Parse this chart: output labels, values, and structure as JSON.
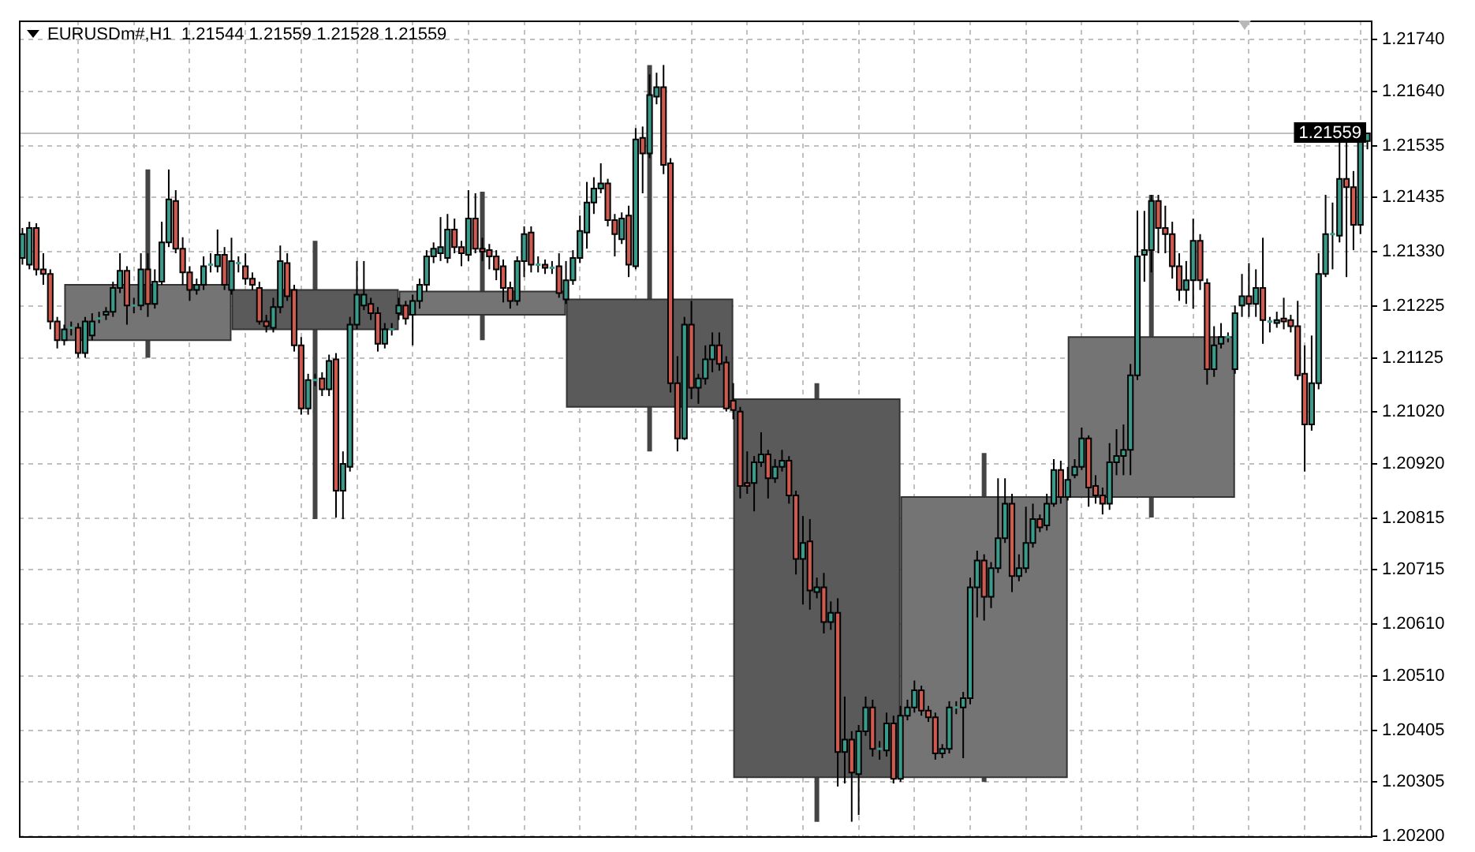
{
  "chart_data": {
    "type": "candlestick",
    "title": "EURUSDm#,H1  1.21544 1.21559 1.21528 1.21559",
    "categories": [
      null,
      null,
      null,
      null,
      null,
      null,
      null,
      null,
      null,
      null,
      null,
      null,
      null,
      null,
      null,
      null,
      null,
      null,
      null,
      null,
      null,
      null,
      null,
      null,
      null,
      null,
      null,
      null,
      null,
      null,
      null,
      null,
      null,
      null,
      null,
      null,
      null,
      null,
      null,
      null,
      null,
      null,
      null,
      null,
      null,
      null,
      null,
      null,
      null,
      null,
      null,
      null,
      null,
      null,
      null,
      null,
      null,
      null,
      null,
      null,
      null,
      null,
      null,
      null,
      null,
      null,
      null,
      null,
      null,
      null,
      null,
      null,
      null,
      null,
      null,
      null,
      null,
      null,
      null,
      null,
      null,
      null,
      null,
      null,
      null,
      null,
      null,
      null,
      null,
      null,
      null,
      null,
      null,
      null,
      null,
      null,
      null,
      null,
      null,
      null,
      null,
      null,
      null,
      null,
      null,
      null,
      null,
      null,
      null,
      null,
      null,
      null,
      null,
      null,
      null,
      null,
      null,
      null,
      null,
      null,
      null,
      null,
      null,
      null,
      null,
      null,
      null,
      null,
      null,
      null,
      null,
      null,
      null,
      null,
      null,
      null,
      null,
      null,
      null,
      null,
      null,
      null,
      null,
      null,
      null,
      null,
      null,
      null,
      null,
      null,
      null,
      null,
      null,
      null,
      null,
      null,
      null,
      null,
      null,
      null,
      null,
      null,
      null,
      null,
      null,
      null,
      null,
      null,
      null,
      null,
      null,
      null,
      null,
      null,
      null,
      null,
      null,
      null,
      null,
      null,
      null,
      null,
      null,
      null,
      null,
      null,
      null,
      null,
      null,
      null,
      null,
      null,
      null,
      null
    ],
    "ylim": [
      1.202,
      1.21777
    ],
    "yticks": [
      {
        "value": 1.202,
        "label": "1.20200"
      },
      1.20305,
      1.20405,
      {
        "value": 1.2051,
        "label": "1.20510"
      },
      {
        "value": 1.2061,
        "label": "1.20610"
      },
      1.20715,
      1.20815,
      {
        "value": 1.2092,
        "label": "1.20920"
      },
      {
        "value": 1.2102,
        "label": "1.21020"
      },
      1.21125,
      1.21225,
      {
        "value": 1.2133,
        "label": "1.21330"
      },
      1.21435,
      1.21535,
      {
        "value": 1.2164,
        "label": "1.21640"
      },
      {
        "value": 1.2174,
        "label": "1.21740"
      }
    ],
    "tick_labels": "y",
    "grid": true,
    "ref_lines": [
      {
        "axis": "y",
        "value": 1.21559,
        "label": "1.21559",
        "color": "#c0c0c0"
      }
    ],
    "series": [
      {
        "ohlc": [
          null,
          null,
          null,
          null,
          null,
          null,
          null,
          null,
          null,
          null,
          null,
          null,
          null,
          null,
          null,
          null,
          null,
          null,
          [
            1.21159,
            1.21489,
            1.21125,
            1.21266
          ],
          null,
          null,
          null,
          null,
          null,
          null,
          null,
          null,
          null,
          null,
          null,
          null,
          null,
          null,
          null,
          null,
          null,
          null,
          null,
          null,
          null,
          null,
          null,
          [
            1.21256,
            1.21351,
            1.20813,
            1.2118
          ],
          null,
          null,
          null,
          null,
          null,
          null,
          null,
          null,
          null,
          null,
          null,
          null,
          null,
          null,
          null,
          null,
          null,
          null,
          null,
          null,
          null,
          null,
          null,
          [
            1.21208,
            1.21446,
            1.21159,
            1.21253
          ],
          null,
          null,
          null,
          null,
          null,
          null,
          null,
          null,
          null,
          null,
          null,
          null,
          null,
          null,
          null,
          null,
          null,
          null,
          null,
          null,
          null,
          null,
          null,
          [
            1.21238,
            1.21691,
            1.20944,
            1.2103
          ],
          null,
          null,
          null,
          null,
          null,
          null,
          null,
          null,
          null,
          null,
          null,
          null,
          null,
          null,
          null,
          null,
          null,
          null,
          null,
          null,
          null,
          null,
          null,
          [
            1.21045,
            1.21076,
            1.20228,
            1.20314
          ],
          null,
          null,
          null,
          null,
          null,
          null,
          null,
          null,
          null,
          null,
          null,
          null,
          null,
          null,
          null,
          null,
          null,
          null,
          null,
          null,
          null,
          null,
          null,
          [
            1.20314,
            1.20941,
            1.20305,
            1.20856
          ],
          null,
          null,
          null,
          null,
          null,
          null,
          null,
          null,
          null,
          null,
          null,
          null,
          null,
          null,
          null,
          null,
          null,
          null,
          null,
          null,
          null,
          null,
          null,
          [
            1.20856,
            1.2144,
            1.20816,
            1.21165
          ],
          null,
          null,
          null,
          null,
          null,
          null,
          null,
          null,
          null,
          null,
          null,
          null,
          null,
          null,
          null,
          null,
          null,
          null,
          null,
          null,
          null,
          null,
          null,
          null,
          null,
          null,
          null,
          null,
          null,
          null,
          null
        ],
        "colors": [
          null,
          null,
          null,
          null,
          null,
          null,
          null,
          null,
          null,
          null,
          null,
          null,
          null,
          null,
          null,
          null,
          null,
          null,
          "#747474",
          null,
          null,
          null,
          null,
          null,
          null,
          null,
          null,
          null,
          null,
          null,
          null,
          null,
          null,
          null,
          null,
          null,
          null,
          null,
          null,
          null,
          null,
          null,
          "#5a5a5a",
          null,
          null,
          null,
          null,
          null,
          null,
          null,
          null,
          null,
          null,
          null,
          null,
          null,
          null,
          null,
          null,
          null,
          null,
          null,
          null,
          null,
          null,
          null,
          "#747474",
          null,
          null,
          null,
          null,
          null,
          null,
          null,
          null,
          null,
          null,
          null,
          null,
          null,
          null,
          null,
          null,
          null,
          null,
          null,
          null,
          null,
          null,
          null,
          "#5a5a5a",
          null,
          null,
          null,
          null,
          null,
          null,
          null,
          null,
          null,
          null,
          null,
          null,
          null,
          null,
          null,
          null,
          null,
          null,
          null,
          null,
          null,
          null,
          null,
          "#5a5a5a",
          null,
          null,
          null,
          null,
          null,
          null,
          null,
          null,
          null,
          null,
          null,
          null,
          null,
          null,
          null,
          null,
          null,
          null,
          null,
          null,
          null,
          null,
          null,
          "#747474",
          null,
          null,
          null,
          null,
          null,
          null,
          null,
          null,
          null,
          null,
          null,
          null,
          null,
          null,
          null,
          null,
          null,
          null,
          null,
          null,
          null,
          null,
          null,
          "#747474",
          null,
          null,
          null,
          null,
          null,
          null,
          null,
          null,
          null,
          null,
          null,
          null,
          null,
          null,
          null,
          null,
          null,
          null,
          null,
          null,
          null,
          null,
          null,
          null,
          null,
          null,
          null,
          null,
          null,
          null,
          null
        ]
      },
      {
        "ohlc": [
          [
            1.21318,
            1.21376,
            1.21305,
            1.21364
          ],
          [
            1.21305,
            1.21388,
            1.21296,
            1.21376
          ],
          [
            1.21376,
            1.21385,
            1.21284,
            1.21296
          ],
          [
            1.21296,
            1.21327,
            1.21266,
            1.21287
          ],
          [
            1.21287,
            1.21296,
            1.2118,
            1.21195
          ],
          [
            1.21195,
            1.21204,
            1.21143,
            1.21159
          ],
          [
            1.21159,
            1.21189,
            1.21149,
            1.2118
          ],
          [
            1.2118,
            1.21195,
            1.21168,
            1.21183
          ],
          [
            1.21183,
            1.21192,
            1.21125,
            1.21134
          ],
          [
            1.21134,
            1.21204,
            1.21125,
            1.21195
          ],
          [
            1.21168,
            1.21211,
            1.21159,
            1.21195
          ],
          [
            1.21201,
            1.21214,
            1.21192,
            1.21201
          ],
          [
            1.21208,
            1.21223,
            1.21198,
            1.21214
          ],
          [
            1.21214,
            1.21272,
            1.21204,
            1.2126
          ],
          [
            1.2126,
            1.21327,
            1.2125,
            1.21293
          ],
          [
            1.21293,
            1.21302,
            1.21189,
            1.21226
          ],
          [
            1.21226,
            1.21241,
            1.21211,
            1.21226
          ],
          [
            1.21226,
            1.21327,
            1.21217,
            1.21296
          ],
          [
            1.21296,
            1.21327,
            1.21204,
            1.21229
          ],
          [
            1.21229,
            1.21296,
            1.2122,
            1.21272
          ],
          [
            1.21272,
            1.21388,
            1.21266,
            1.21348
          ],
          [
            1.21348,
            1.21489,
            1.21339,
            1.21431
          ],
          [
            1.21428,
            1.21449,
            1.21327,
            1.21336
          ],
          [
            1.21336,
            1.21358,
            1.21266,
            1.2129
          ],
          [
            1.2129,
            1.21302,
            1.21235,
            1.21256
          ],
          [
            1.21256,
            1.21278,
            1.21247,
            1.21266
          ],
          [
            1.21266,
            1.21321,
            1.21256,
            1.21302
          ],
          [
            1.21305,
            1.21327,
            1.2129,
            1.21305
          ],
          [
            1.21302,
            1.21373,
            1.2129,
            1.21324
          ],
          [
            1.21324,
            1.21339,
            1.21256,
            1.21266
          ],
          [
            1.21256,
            1.21357,
            1.21247,
            1.21312
          ],
          [
            1.21308,
            1.21321,
            1.2129,
            1.21308
          ],
          [
            1.21302,
            1.21327,
            1.21266,
            1.21278
          ],
          [
            1.21278,
            1.2129,
            1.21256,
            1.21266
          ],
          [
            1.2126,
            1.21272,
            1.21189,
            1.21195
          ],
          [
            1.21195,
            1.21208,
            1.21174,
            1.21186
          ],
          [
            1.21183,
            1.21241,
            1.21174,
            1.21223
          ],
          [
            1.21223,
            1.21342,
            1.21211,
            1.21312
          ],
          [
            1.21308,
            1.21327,
            1.21235,
            1.21244
          ],
          [
            1.21256,
            1.21266,
            1.21137,
            1.21149
          ],
          [
            1.21149,
            1.21165,
            1.21015,
            1.21027
          ],
          [
            1.21027,
            1.21094,
            1.21015,
            1.21082
          ],
          [
            1.21082,
            1.21094,
            1.2107,
            1.21082
          ],
          [
            1.21085,
            1.21097,
            1.21051,
            1.21064
          ],
          [
            1.21064,
            1.21131,
            1.21051,
            1.21119
          ],
          [
            1.21122,
            1.21134,
            1.20816,
            1.20868
          ],
          [
            1.20868,
            1.20944,
            1.20813,
            1.2092
          ],
          [
            1.20914,
            1.21204,
            1.20905,
            1.21189
          ],
          [
            1.21189,
            1.21312,
            1.2118,
            1.21247
          ],
          [
            1.21226,
            1.21312,
            1.21217,
            1.21247
          ],
          [
            1.21229,
            1.21241,
            1.21198,
            1.21211
          ],
          [
            1.21211,
            1.21223,
            1.21137,
            1.21152
          ],
          [
            1.21152,
            1.21192,
            1.21143,
            1.2118
          ],
          [
            1.2118,
            1.21192,
            1.21168,
            1.2118
          ],
          [
            1.21211,
            1.21241,
            1.21198,
            1.21226
          ],
          [
            1.21226,
            1.21235,
            1.21189,
            1.21201
          ],
          [
            1.21208,
            1.21247,
            1.21149,
            1.21235
          ],
          [
            1.21235,
            1.21278,
            1.2122,
            1.21266
          ],
          [
            1.21266,
            1.21333,
            1.21253,
            1.21321
          ],
          [
            1.21321,
            1.21348,
            1.21308,
            1.21336
          ],
          [
            1.21327,
            1.21397,
            1.21312,
            1.21339
          ],
          [
            1.21318,
            1.21403,
            1.21308,
            1.21373
          ],
          [
            1.21373,
            1.21394,
            1.21327,
            1.21339
          ],
          [
            1.21339,
            1.21351,
            1.21302,
            1.21327
          ],
          [
            1.21324,
            1.21449,
            1.21312,
            1.21394
          ],
          [
            1.21394,
            1.21443,
            1.21327,
            1.21336
          ],
          [
            1.21336,
            1.21357,
            1.21312,
            1.2133
          ],
          [
            1.21333,
            1.21345,
            1.21296,
            1.21321
          ],
          [
            1.21321,
            1.21333,
            1.21275,
            1.21296
          ],
          [
            1.21302,
            1.21315,
            1.21232,
            1.2126
          ],
          [
            1.2126,
            1.21272,
            1.2122,
            1.21235
          ],
          [
            1.21235,
            1.21321,
            1.21226,
            1.21312
          ],
          [
            1.21312,
            1.21379,
            1.21281,
            1.21364
          ],
          [
            1.21367,
            1.21379,
            1.2129,
            1.21305
          ],
          [
            1.21305,
            1.21321,
            1.2129,
            1.21305
          ],
          [
            1.21305,
            1.21315,
            1.21287,
            1.21299
          ],
          [
            1.21299,
            1.21312,
            1.21287,
            1.21299
          ],
          [
            1.21302,
            1.21327,
            1.21241,
            1.2125
          ],
          [
            1.21238,
            1.21312,
            1.21229,
            1.21275
          ],
          [
            1.21275,
            1.21333,
            1.21266,
            1.21318
          ],
          [
            1.21318,
            1.214,
            1.21308,
            1.2137
          ],
          [
            1.21367,
            1.21465,
            1.21336,
            1.21425
          ],
          [
            1.21425,
            1.21474,
            1.21403,
            1.21452
          ],
          [
            1.21452,
            1.21501,
            1.21443,
            1.21462
          ],
          [
            1.21462,
            1.21471,
            1.21379,
            1.21391
          ],
          [
            1.21391,
            1.21403,
            1.21321,
            1.21364
          ],
          [
            1.21354,
            1.21406,
            1.21345,
            1.21394
          ],
          [
            1.214,
            1.21419,
            1.21281,
            1.21305
          ],
          [
            1.21302,
            1.21569,
            1.21296,
            1.21547
          ],
          [
            1.2155,
            1.21572,
            1.21443,
            1.2152
          ],
          [
            1.2152,
            1.21673,
            1.21511,
            1.21633
          ],
          [
            1.2163,
            1.21676,
            1.21615,
            1.21648
          ],
          [
            1.21648,
            1.21691,
            1.2148,
            1.21498
          ],
          [
            1.21501,
            1.21511,
            1.21058,
            1.21076
          ],
          [
            1.21076,
            1.21128,
            1.20944,
            1.20969
          ],
          [
            1.20969,
            1.21204,
            1.20966,
            1.21189
          ],
          [
            1.21189,
            1.21235,
            1.21045,
            1.21067
          ],
          [
            1.21067,
            1.21094,
            1.21036,
            1.21085
          ],
          [
            1.21085,
            1.21149,
            1.21073,
            1.21122
          ],
          [
            1.21122,
            1.21174,
            1.21097,
            1.21149
          ],
          [
            1.21149,
            1.21174,
            1.211,
            1.21113
          ],
          [
            1.21116,
            1.21128,
            1.21021,
            1.21027
          ],
          [
            1.21042,
            1.21076,
            1.21006,
            1.21024
          ],
          [
            1.21021,
            1.2103,
            1.20853,
            1.20877
          ],
          [
            1.20883,
            1.20944,
            1.20862,
            1.20877
          ],
          [
            1.20883,
            1.20935,
            1.20828,
            1.20923
          ],
          [
            1.20923,
            1.20981,
            1.20914,
            1.20938
          ],
          [
            1.20938,
            1.20947,
            1.20853,
            1.20892
          ],
          [
            1.20892,
            1.20929,
            1.20883,
            1.20914
          ],
          [
            1.20914,
            1.20947,
            1.20905,
            1.20926
          ],
          [
            1.20926,
            1.20935,
            1.20843,
            1.20859
          ],
          [
            1.20859,
            1.20868,
            1.20706,
            1.20736
          ],
          [
            1.20736,
            1.20819,
            1.20648,
            1.20767
          ],
          [
            1.2077,
            1.20813,
            1.20638,
            1.20675
          ],
          [
            1.20672,
            1.207,
            1.2066,
            1.20681
          ],
          [
            1.20681,
            1.20709,
            1.20592,
            1.20614
          ],
          [
            1.20614,
            1.20654,
            1.20599,
            1.20632
          ],
          [
            1.20632,
            1.2066,
            1.20296,
            1.20363
          ],
          [
            1.20363,
            1.2047,
            1.20302,
            1.20387
          ],
          [
            1.20387,
            1.20403,
            1.20228,
            1.20323
          ],
          [
            1.2032,
            1.20415,
            1.20241,
            1.20403
          ],
          [
            1.20403,
            1.2047,
            1.20394,
            1.20449
          ],
          [
            1.20449,
            1.20464,
            1.20354,
            1.20369
          ],
          [
            1.20369,
            1.20384,
            1.20348,
            1.20369
          ],
          [
            1.20366,
            1.20439,
            1.20354,
            1.20418
          ],
          [
            1.20418,
            1.20433,
            1.20302,
            1.20311
          ],
          [
            1.20311,
            1.20452,
            1.20305,
            1.20433
          ],
          [
            1.20433,
            1.20464,
            1.20424,
            1.20449
          ],
          [
            1.20449,
            1.20501,
            1.20439,
            1.20482
          ],
          [
            1.20482,
            1.20491,
            1.20433,
            1.20443
          ],
          [
            1.20443,
            1.20452,
            1.20421,
            1.2043
          ],
          [
            1.2043,
            1.20439,
            1.20348,
            1.2036
          ],
          [
            1.2036,
            1.20378,
            1.20351,
            1.20369
          ],
          [
            1.20369,
            1.20461,
            1.2036,
            1.20449
          ],
          [
            1.20449,
            1.20461,
            1.20436,
            1.20449
          ],
          [
            1.20449,
            1.20479,
            1.20351,
            1.20467
          ],
          [
            1.20467,
            1.207,
            1.20455,
            1.20681
          ],
          [
            1.20681,
            1.20752,
            1.20623,
            1.20733
          ],
          [
            1.20733,
            1.20745,
            1.20617,
            1.20663
          ],
          [
            1.20663,
            1.2073,
            1.20641,
            1.20718
          ],
          [
            1.20718,
            1.20892,
            1.20709,
            1.20776
          ],
          [
            1.20776,
            1.20892,
            1.20767,
            1.20843
          ],
          [
            1.20843,
            1.20862,
            1.20672,
            1.20703
          ],
          [
            1.20703,
            1.20745,
            1.20693,
            1.20718
          ],
          [
            1.20718,
            1.20837,
            1.20709,
            1.20767
          ],
          [
            1.20767,
            1.20843,
            1.20758,
            1.20813
          ],
          [
            1.20813,
            1.20822,
            1.20788,
            1.20797
          ],
          [
            1.20801,
            1.20862,
            1.20791,
            1.20843
          ],
          [
            1.20843,
            1.20929,
            1.20837,
            1.20908
          ],
          [
            1.20908,
            1.20926,
            1.20843,
            1.20856
          ],
          [
            1.20856,
            1.20914,
            1.20849,
            1.20889
          ],
          [
            1.20898,
            1.20929,
            1.20892,
            1.20914
          ],
          [
            1.20914,
            1.2099,
            1.20908,
            1.20969
          ],
          [
            1.20969,
            1.20975,
            1.20837,
            1.20874
          ],
          [
            1.20877,
            1.20898,
            1.20843,
            1.20859
          ],
          [
            1.20859,
            1.20874,
            1.20822,
            1.20843
          ],
          [
            1.20843,
            1.2096,
            1.20831,
            1.20923
          ],
          [
            1.20923,
            1.20987,
            1.20898,
            1.20935
          ],
          [
            1.20935,
            1.20996,
            1.20898,
            1.20947
          ],
          [
            1.20947,
            1.21113,
            1.20898,
            1.21091
          ],
          [
            1.21091,
            1.21409,
            1.21082,
            1.21321
          ],
          [
            1.21324,
            1.21409,
            1.21272,
            1.21333
          ],
          [
            1.21333,
            1.2144,
            1.2129,
            1.21428
          ],
          [
            1.21428,
            1.2144,
            1.21327,
            1.21376
          ],
          [
            1.21376,
            1.21419,
            1.21327,
            1.21364
          ],
          [
            1.21364,
            1.21388,
            1.21278,
            1.21302
          ],
          [
            1.21302,
            1.21327,
            1.21235,
            1.21256
          ],
          [
            1.21256,
            1.21312,
            1.21229,
            1.21275
          ],
          [
            1.21275,
            1.21394,
            1.2122,
            1.21351
          ],
          [
            1.21351,
            1.21364,
            1.21256,
            1.21275
          ],
          [
            1.21269,
            1.21278,
            1.21073,
            1.21103
          ],
          [
            1.21103,
            1.21186,
            1.21088,
            1.21149
          ],
          [
            1.21152,
            1.21192,
            1.21143,
            1.21165
          ],
          [
            1.21165,
            1.21174,
            1.21155,
            1.21165
          ],
          [
            1.21103,
            1.21226,
            1.21094,
            1.21211
          ],
          [
            1.21226,
            1.21287,
            1.21204,
            1.21244
          ],
          [
            1.21244,
            1.21308,
            1.21204,
            1.21229
          ],
          [
            1.21229,
            1.21296,
            1.21204,
            1.2126
          ],
          [
            1.2126,
            1.21357,
            1.21152,
            1.21198
          ],
          [
            1.21195,
            1.21204,
            1.21174,
            1.21195
          ],
          [
            1.21192,
            1.21214,
            1.21183,
            1.21198
          ],
          [
            1.21201,
            1.21241,
            1.2118,
            1.21195
          ],
          [
            1.21198,
            1.21208,
            1.21174,
            1.21186
          ],
          [
            1.21186,
            1.21235,
            1.21082,
            1.21091
          ],
          [
            1.21094,
            1.21149,
            1.20905,
            1.20996
          ],
          [
            1.20996,
            1.21168,
            1.20984,
            1.21076
          ],
          [
            1.21076,
            1.21327,
            1.21064,
            1.21287
          ],
          [
            1.21287,
            1.2144,
            1.21281,
            1.21364
          ],
          [
            1.21361,
            1.21425,
            1.21296,
            1.21364
          ],
          [
            1.21361,
            1.21541,
            1.21348,
            1.21471
          ],
          [
            1.21471,
            1.21541,
            1.21281,
            1.21455
          ],
          [
            1.21455,
            1.21486,
            1.21333,
            1.21382
          ],
          [
            1.21382,
            1.21578,
            1.21364,
            1.21544
          ],
          [
            1.21544,
            1.21559,
            1.21528,
            1.21559
          ]
        ],
        "colors": [
          "#3b9b8b",
          "#3b9b8b",
          "#cf5a4f",
          "#cf5a4f",
          "#cf5a4f",
          "#cf5a4f",
          "#3b9b8b",
          "#3b9b8b",
          "#cf5a4f",
          "#3b9b8b",
          "#3b9b8b",
          "#3b9b8b",
          "#3b9b8b",
          "#3b9b8b",
          "#3b9b8b",
          "#cf5a4f",
          "#3b9b8b",
          "#3b9b8b",
          "#cf5a4f",
          "#3b9b8b",
          "#3b9b8b",
          "#3b9b8b",
          "#cf5a4f",
          "#cf5a4f",
          "#cf5a4f",
          "#3b9b8b",
          "#3b9b8b",
          "#3b9b8b",
          "#3b9b8b",
          "#cf5a4f",
          "#3b9b8b",
          "#3b9b8b",
          "#cf5a4f",
          "#cf5a4f",
          "#cf5a4f",
          "#cf5a4f",
          "#3b9b8b",
          "#3b9b8b",
          "#cf5a4f",
          "#cf5a4f",
          "#cf5a4f",
          "#3b9b8b",
          "#3b9b8b",
          "#cf5a4f",
          "#3b9b8b",
          "#cf5a4f",
          "#3b9b8b",
          "#3b9b8b",
          "#3b9b8b",
          "#3b9b8b",
          "#cf5a4f",
          "#cf5a4f",
          "#3b9b8b",
          "#3b9b8b",
          "#3b9b8b",
          "#cf5a4f",
          "#3b9b8b",
          "#3b9b8b",
          "#3b9b8b",
          "#3b9b8b",
          "#3b9b8b",
          "#3b9b8b",
          "#cf5a4f",
          "#cf5a4f",
          "#3b9b8b",
          "#cf5a4f",
          "#cf5a4f",
          "#cf5a4f",
          "#cf5a4f",
          "#cf5a4f",
          "#cf5a4f",
          "#3b9b8b",
          "#3b9b8b",
          "#cf5a4f",
          "#3b9b8b",
          "#cf5a4f",
          "#3b9b8b",
          "#cf5a4f",
          "#3b9b8b",
          "#3b9b8b",
          "#3b9b8b",
          "#3b9b8b",
          "#3b9b8b",
          "#3b9b8b",
          "#cf5a4f",
          "#cf5a4f",
          "#3b9b8b",
          "#cf5a4f",
          "#3b9b8b",
          "#cf5a4f",
          "#3b9b8b",
          "#3b9b8b",
          "#cf5a4f",
          "#cf5a4f",
          "#cf5a4f",
          "#3b9b8b",
          "#cf5a4f",
          "#3b9b8b",
          "#3b9b8b",
          "#3b9b8b",
          "#cf5a4f",
          "#cf5a4f",
          "#cf5a4f",
          "#cf5a4f",
          "#cf5a4f",
          "#3b9b8b",
          "#3b9b8b",
          "#cf5a4f",
          "#3b9b8b",
          "#3b9b8b",
          "#cf5a4f",
          "#cf5a4f",
          "#3b9b8b",
          "#cf5a4f",
          "#3b9b8b",
          "#cf5a4f",
          "#3b9b8b",
          "#cf5a4f",
          "#3b9b8b",
          "#cf5a4f",
          "#3b9b8b",
          "#3b9b8b",
          "#cf5a4f",
          "#3b9b8b",
          "#3b9b8b",
          "#cf5a4f",
          "#3b9b8b",
          "#3b9b8b",
          "#3b9b8b",
          "#cf5a4f",
          "#cf5a4f",
          "#cf5a4f",
          "#3b9b8b",
          "#3b9b8b",
          "#3b9b8b",
          "#3b9b8b",
          "#3b9b8b",
          "#3b9b8b",
          "#cf5a4f",
          "#3b9b8b",
          "#3b9b8b",
          "#3b9b8b",
          "#cf5a4f",
          "#3b9b8b",
          "#3b9b8b",
          "#3b9b8b",
          "#cf5a4f",
          "#3b9b8b",
          "#3b9b8b",
          "#cf5a4f",
          "#3b9b8b",
          "#3b9b8b",
          "#3b9b8b",
          "#cf5a4f",
          "#cf5a4f",
          "#cf5a4f",
          "#3b9b8b",
          "#3b9b8b",
          "#3b9b8b",
          "#3b9b8b",
          "#3b9b8b",
          "#3b9b8b",
          "#3b9b8b",
          "#cf5a4f",
          "#cf5a4f",
          "#cf5a4f",
          "#cf5a4f",
          "#3b9b8b",
          "#3b9b8b",
          "#cf5a4f",
          "#cf5a4f",
          "#3b9b8b",
          "#3b9b8b",
          "#3b9b8b",
          "#3b9b8b",
          "#3b9b8b",
          "#cf5a4f",
          "#3b9b8b",
          "#cf5a4f",
          "#3b9b8b",
          "#3b9b8b",
          "#cf5a4f",
          "#cf5a4f",
          "#cf5a4f",
          "#cf5a4f",
          "#3b9b8b",
          "#3b9b8b",
          "#3b9b8b",
          "#3b9b8b",
          "#3b9b8b",
          "#cf5a4f",
          "#cf5a4f",
          "#3b9b8b",
          "#3b9b8b"
        ]
      }
    ]
  }
}
